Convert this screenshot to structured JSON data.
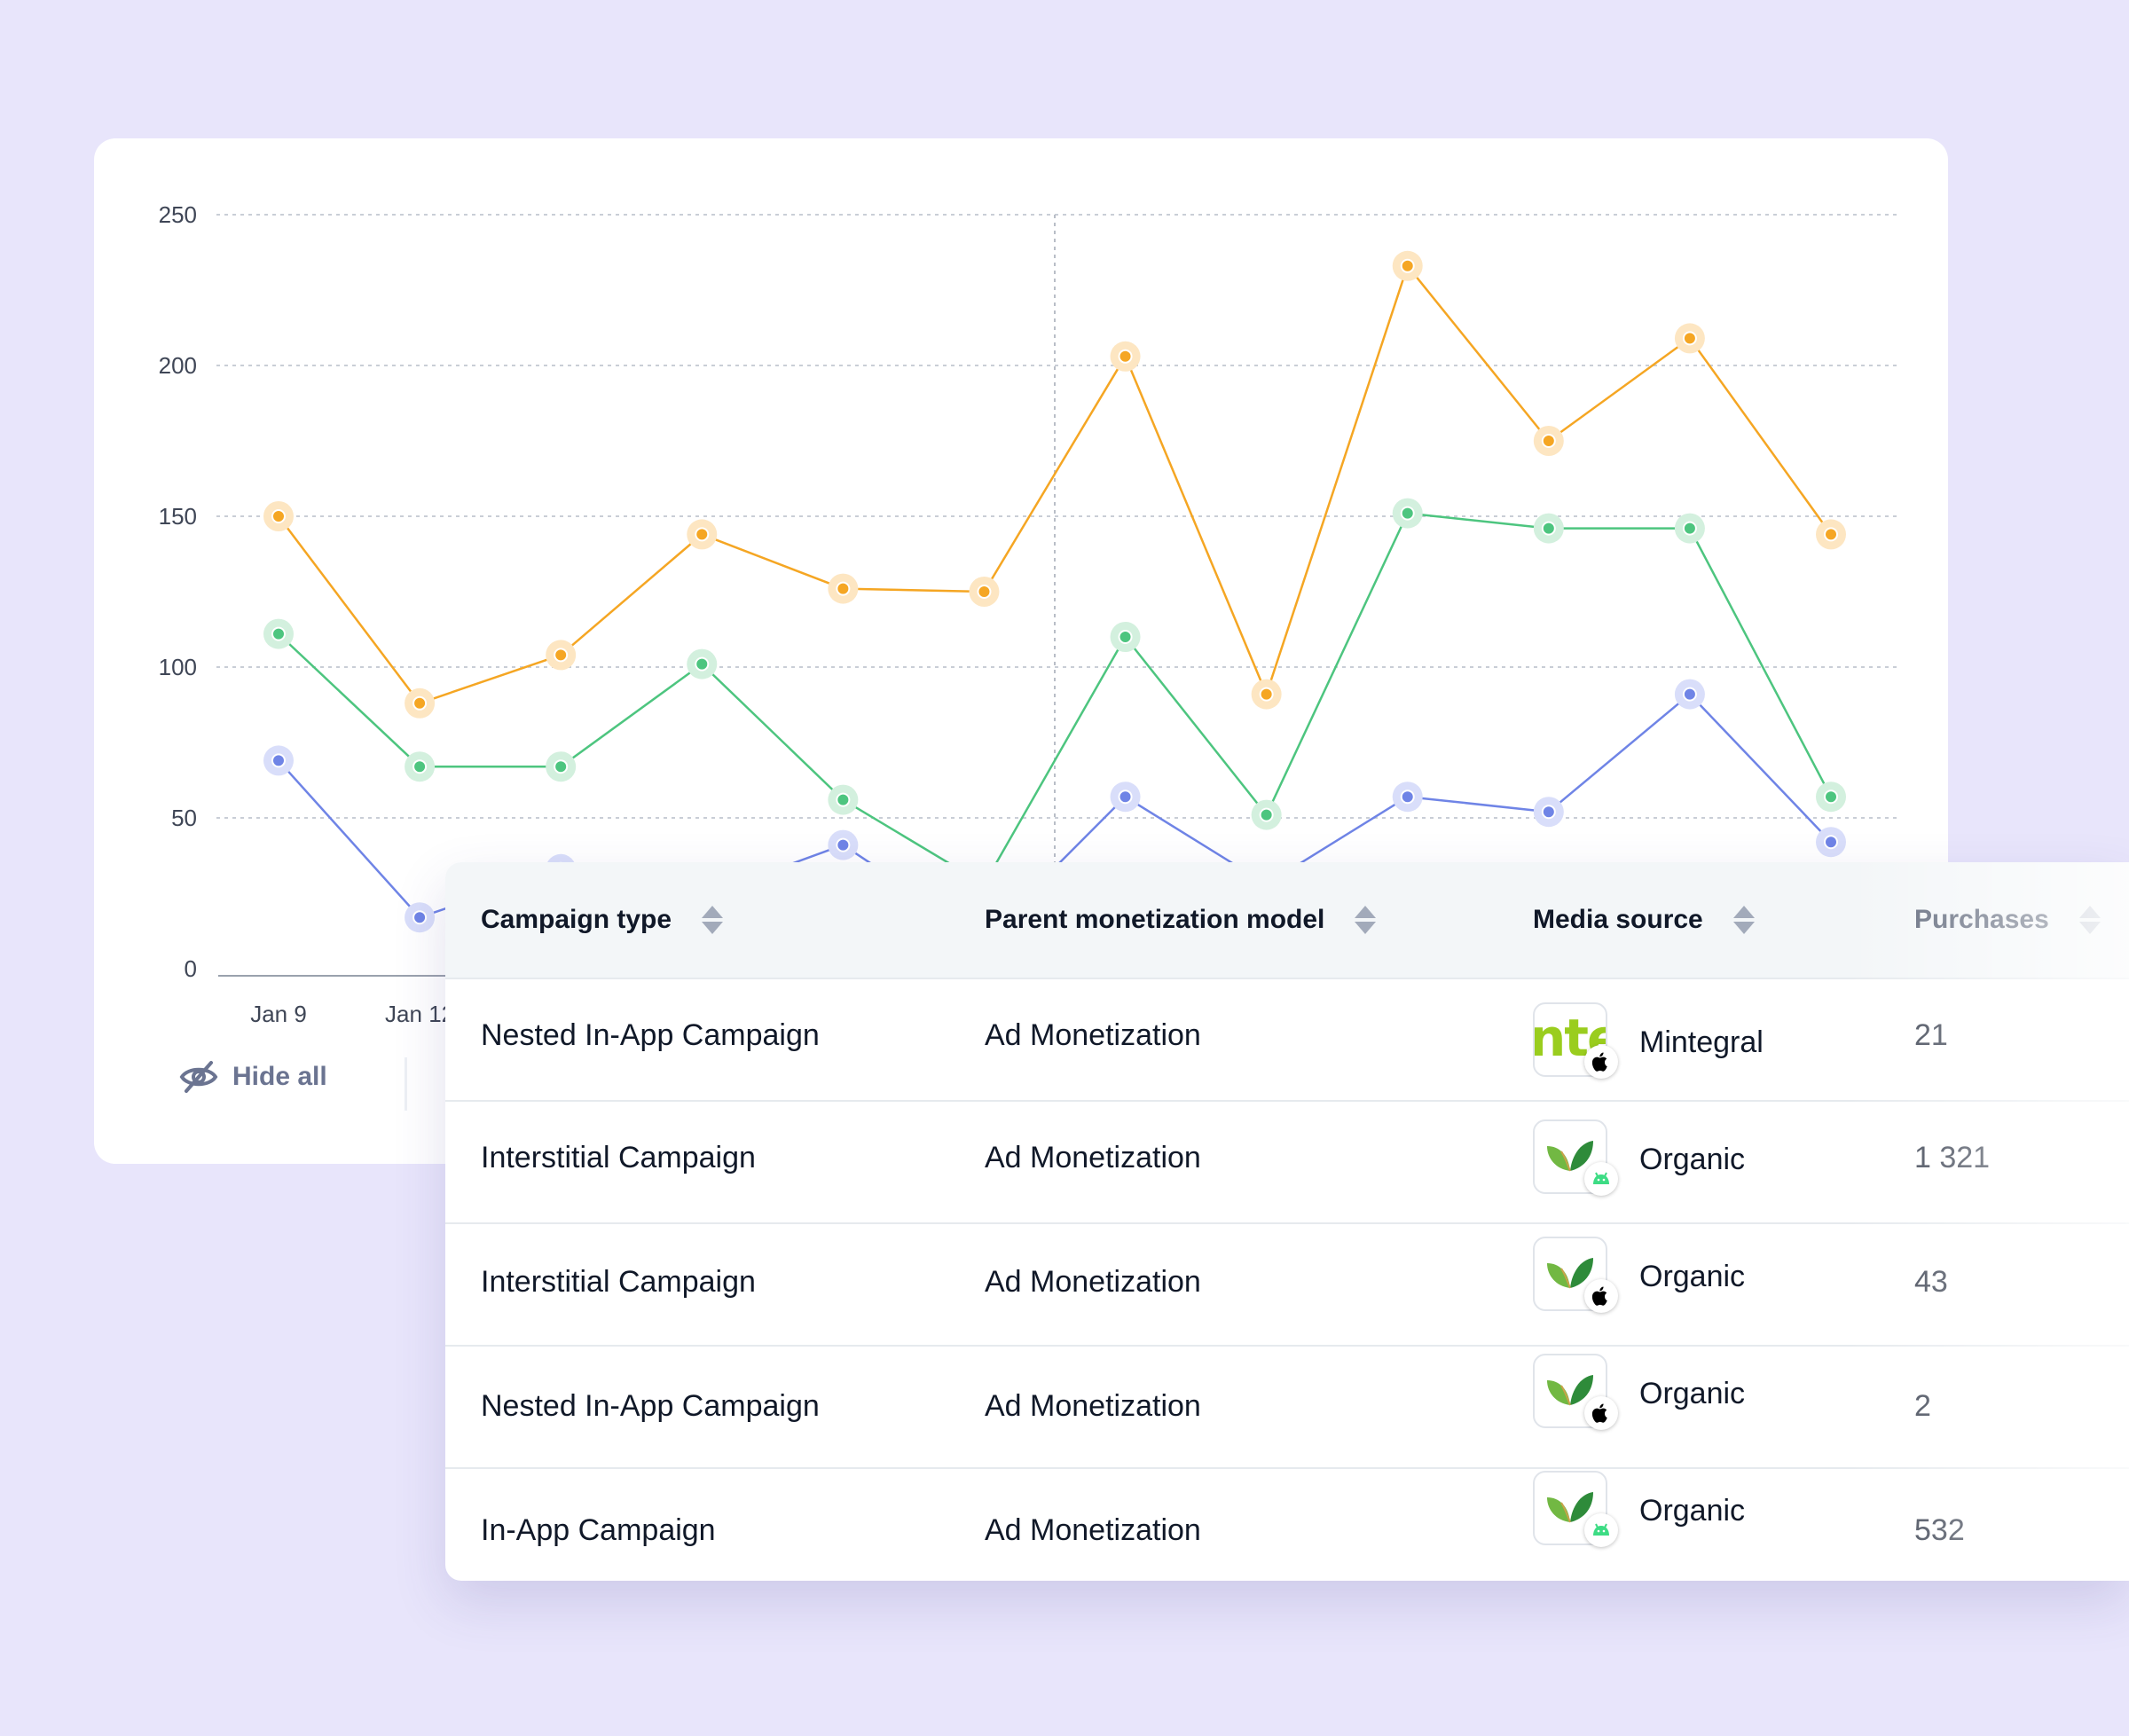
{
  "chart_data": {
    "type": "line",
    "y_ticks": [
      "250",
      "200",
      "150",
      "100",
      "50",
      "0"
    ],
    "ylim": [
      0,
      250
    ],
    "x_labels": [
      "Jan 9",
      "Jan 12"
    ],
    "grid": true,
    "series": [
      {
        "color": "#f5a623",
        "values": [
          150,
          88,
          104,
          144,
          126,
          125,
          203,
          91,
          233,
          175,
          209,
          144
        ]
      },
      {
        "color": "#4dc57f",
        "values": [
          111,
          67,
          67,
          101,
          56,
          28,
          110,
          51,
          151,
          146,
          146,
          57
        ]
      },
      {
        "color": "#6f84e6",
        "values": [
          69,
          17,
          33,
          24,
          41,
          10,
          57,
          28,
          57,
          52,
          91,
          42
        ]
      }
    ]
  },
  "controls": {
    "hide_all_label": "Hide all",
    "hide_icon": "eye-off-icon"
  },
  "table": {
    "headers": {
      "campaign_type": "Campaign type",
      "monetization": "Parent monetization model",
      "media_source": "Media source",
      "purchases": "Purchases"
    },
    "rows": [
      {
        "campaign_type": "Nested In-App Campaign",
        "monetization": "Ad Monetization",
        "source": "Mintegral",
        "logo": "mintegral-logo",
        "logo_text": "nte",
        "os": "apple",
        "purchases": "21"
      },
      {
        "campaign_type": "Interstitial Campaign",
        "monetization": "Ad Monetization",
        "source": "Organic",
        "logo": "organic-leaf-logo",
        "os": "android",
        "purchases": "1 321"
      },
      {
        "campaign_type": "Interstitial Campaign",
        "monetization": "Ad Monetization",
        "source": "Organic",
        "logo": "organic-leaf-logo",
        "os": "apple",
        "purchases": "43"
      },
      {
        "campaign_type": "Nested In-App Campaign",
        "monetization": "Ad Monetization",
        "source": "Organic",
        "logo": "organic-leaf-logo",
        "os": "apple",
        "purchases": "2"
      },
      {
        "campaign_type": "In-App Campaign",
        "monetization": "Ad Monetization",
        "source": "Organic",
        "logo": "organic-leaf-logo",
        "os": "android",
        "purchases": "532"
      }
    ]
  }
}
